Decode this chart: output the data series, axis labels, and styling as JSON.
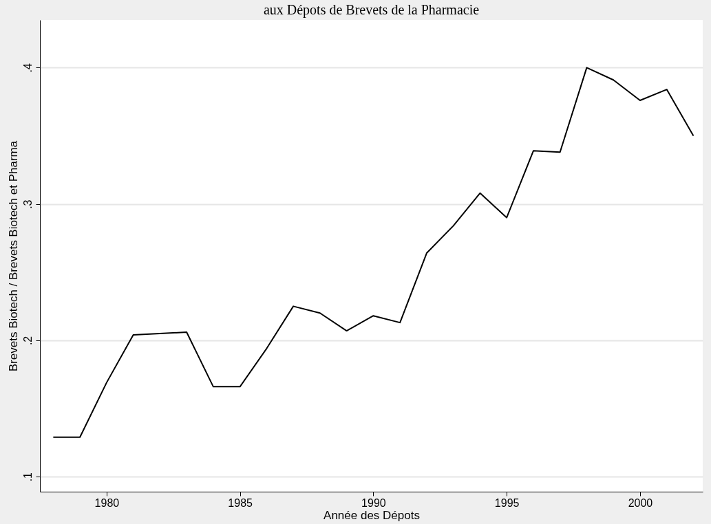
{
  "chart_data": {
    "type": "line",
    "title": "aux Dépots de Brevets de la Pharmacie",
    "xlabel": "Année des Dépots",
    "ylabel": "Brevets Biotech / Brevets Biotech et Pharma",
    "x": [
      1978,
      1979,
      1980,
      1981,
      1982,
      1983,
      1984,
      1985,
      1986,
      1987,
      1988,
      1989,
      1990,
      1991,
      1992,
      1993,
      1994,
      1995,
      1996,
      1997,
      1998,
      1999,
      2000,
      2001,
      2002
    ],
    "series": [
      {
        "color": "#000000",
        "values": [
          0.129,
          0.129,
          0.169,
          0.204,
          0.205,
          0.206,
          0.166,
          0.166,
          0.194,
          0.225,
          0.22,
          0.207,
          0.218,
          0.213,
          0.264,
          0.284,
          0.308,
          0.29,
          0.339,
          0.338,
          0.4,
          0.391,
          0.376,
          0.384,
          0.35
        ]
      }
    ],
    "xlim": [
      1977.5,
      2002.35
    ],
    "ylim": [
      0.089,
      0.435
    ],
    "xticks": [
      1980,
      1985,
      1990,
      1995,
      2000
    ],
    "yticks": [
      {
        "value": 0.1,
        "label": ".1"
      },
      {
        "value": 0.2,
        "label": ".2"
      },
      {
        "value": 0.3,
        "label": ".3"
      },
      {
        "value": 0.4,
        "label": ".4"
      }
    ],
    "grid": "y",
    "legend": false,
    "line_style": "solid"
  }
}
